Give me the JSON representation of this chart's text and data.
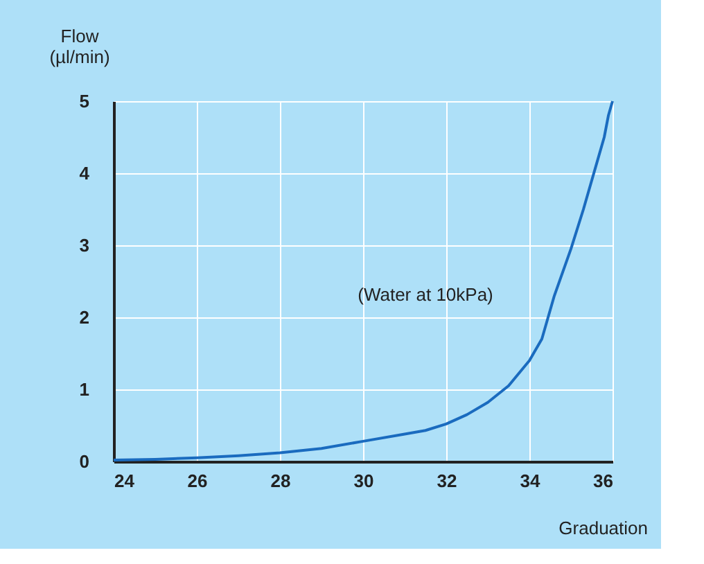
{
  "chart_data": {
    "type": "line",
    "xlabel": "Graduation",
    "ylabel": "Flow\n(µl/min)",
    "annotations": [
      "(Water at 10kPa)"
    ],
    "x": [
      24,
      25,
      26,
      27,
      28,
      29,
      30,
      31,
      31.5,
      32,
      32.5,
      33,
      33.5,
      34,
      34.3,
      34.6,
      35,
      35.3,
      35.6,
      35.8,
      35.9,
      36
    ],
    "series": [
      {
        "color": "#1a6bbf",
        "values": [
          0.02,
          0.03,
          0.05,
          0.08,
          0.12,
          0.18,
          0.28,
          0.38,
          0.43,
          0.52,
          0.65,
          0.82,
          1.05,
          1.4,
          1.7,
          2.3,
          2.95,
          3.5,
          4.1,
          4.5,
          4.8,
          5.0
        ]
      }
    ],
    "xlim": [
      24,
      36
    ],
    "xticks": [
      24,
      26,
      28,
      30,
      32,
      34,
      36
    ],
    "ylim": [
      0,
      5
    ],
    "yticks": [
      0,
      1,
      2,
      3,
      4,
      5
    ],
    "grid": true,
    "marker": "none",
    "line_style": "solid"
  }
}
